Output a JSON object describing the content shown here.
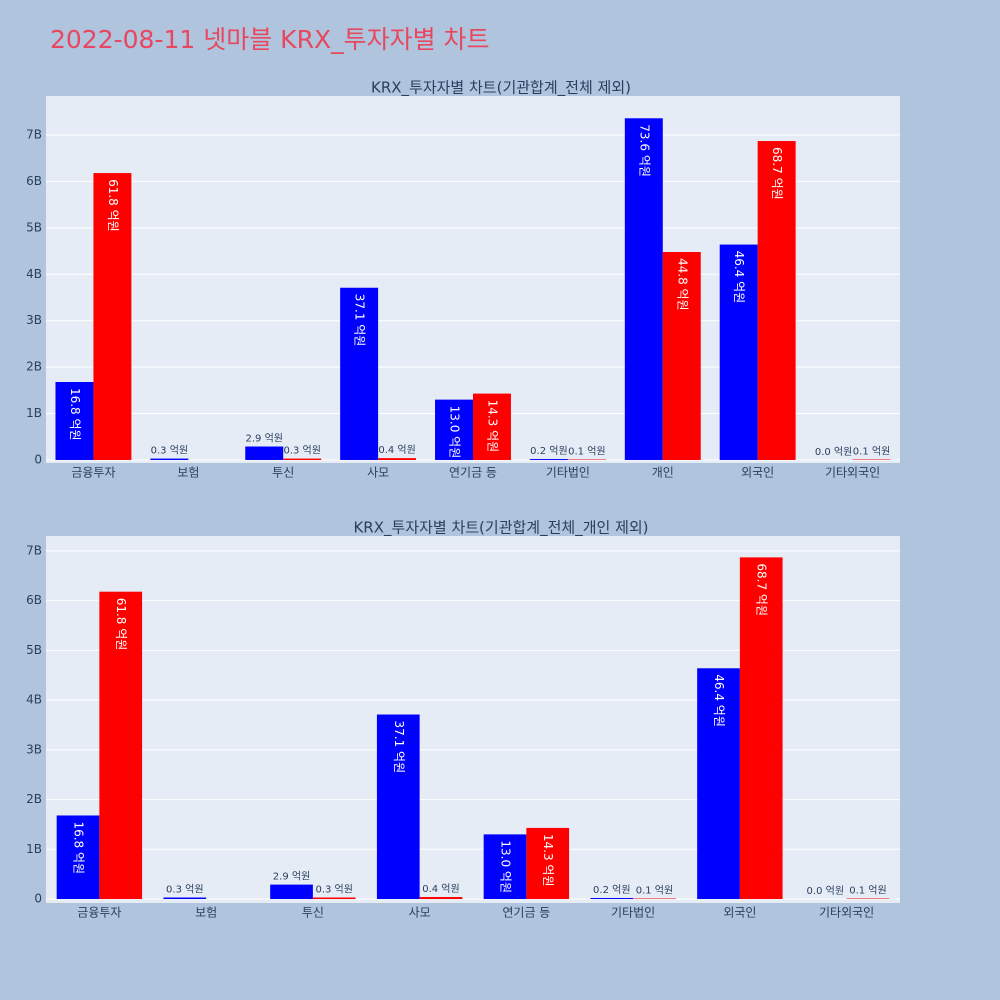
{
  "title": "2022-08-11 넷마블 KRX_투자자별 차트",
  "chart_data": [
    {
      "type": "bar",
      "title": "KRX_투자자별 차트(기관합계_전체 제외)",
      "categories": [
        "금융투자",
        "보험",
        "투신",
        "사모",
        "연기금 등",
        "기타법인",
        "개인",
        "외국인",
        "기타외국인"
      ],
      "series": [
        {
          "color": "#0000ff",
          "values": [
            1680000000,
            30000000,
            290000000,
            3710000000,
            1300000000,
            20000000,
            7360000000,
            4640000000,
            0
          ],
          "value_labels": [
            "16.8 억원",
            "0.3 억원",
            "2.9 억원",
            "37.1 억원",
            "13.0 억원",
            "0.2 억원",
            "73.6 억원",
            "46.4 억원",
            "0.0 억원"
          ]
        },
        {
          "color": "#ff0000",
          "values": [
            6180000000,
            null,
            30000000,
            40000000,
            1430000000,
            10000000,
            4480000000,
            6870000000,
            10000000
          ],
          "value_labels": [
            "61.8 억원",
            null,
            "0.3 억원",
            "0.4 억원",
            "14.3 억원",
            "0.1 억원",
            "44.8 억원",
            "68.7 억원",
            "0.1 억원"
          ]
        }
      ],
      "ylim": [
        -65000000,
        7840000000
      ],
      "yticks": [
        0,
        {
          "value": 1000000000,
          "label": "1B"
        },
        {
          "value": 2000000000,
          "label": "2B"
        },
        {
          "value": 3000000000,
          "label": "3B"
        },
        {
          "value": 4000000000,
          "label": "4B"
        },
        {
          "value": 5000000000,
          "label": "5B"
        },
        {
          "value": 6000000000,
          "label": "6B"
        },
        {
          "value": 7000000000,
          "label": "7B"
        }
      ],
      "grid": true
    },
    {
      "type": "bar",
      "title": "KRX_투자자별 차트(기관합계_전체_개인 제외)",
      "categories": [
        "금융투자",
        "보험",
        "투신",
        "사모",
        "연기금 등",
        "기타법인",
        "외국인",
        "기타외국인"
      ],
      "series": [
        {
          "color": "#0000ff",
          "values": [
            1680000000,
            30000000,
            290000000,
            3710000000,
            1300000000,
            20000000,
            4640000000,
            0
          ],
          "value_labels": [
            "16.8 억원",
            "0.3 억원",
            "2.9 억원",
            "37.1 억원",
            "13.0 억원",
            "0.2 억원",
            "46.4 억원",
            "0.0 억원"
          ]
        },
        {
          "color": "#ff0000",
          "values": [
            6180000000,
            null,
            30000000,
            40000000,
            1430000000,
            10000000,
            6870000000,
            10000000
          ],
          "value_labels": [
            "61.8 억원",
            null,
            "0.3 억원",
            "0.4 억원",
            "14.3 억원",
            "0.1 억원",
            "68.7 억원",
            "0.1 억원"
          ]
        }
      ],
      "ylim": [
        -80000000,
        7300000000
      ],
      "yticks": [
        0,
        {
          "value": 1000000000,
          "label": "1B"
        },
        {
          "value": 2000000000,
          "label": "2B"
        },
        {
          "value": 3000000000,
          "label": "3B"
        },
        {
          "value": 4000000000,
          "label": "4B"
        },
        {
          "value": 5000000000,
          "label": "5B"
        },
        {
          "value": 6000000000,
          "label": "6B"
        },
        {
          "value": 7000000000,
          "label": "7B"
        }
      ],
      "grid": true
    }
  ]
}
